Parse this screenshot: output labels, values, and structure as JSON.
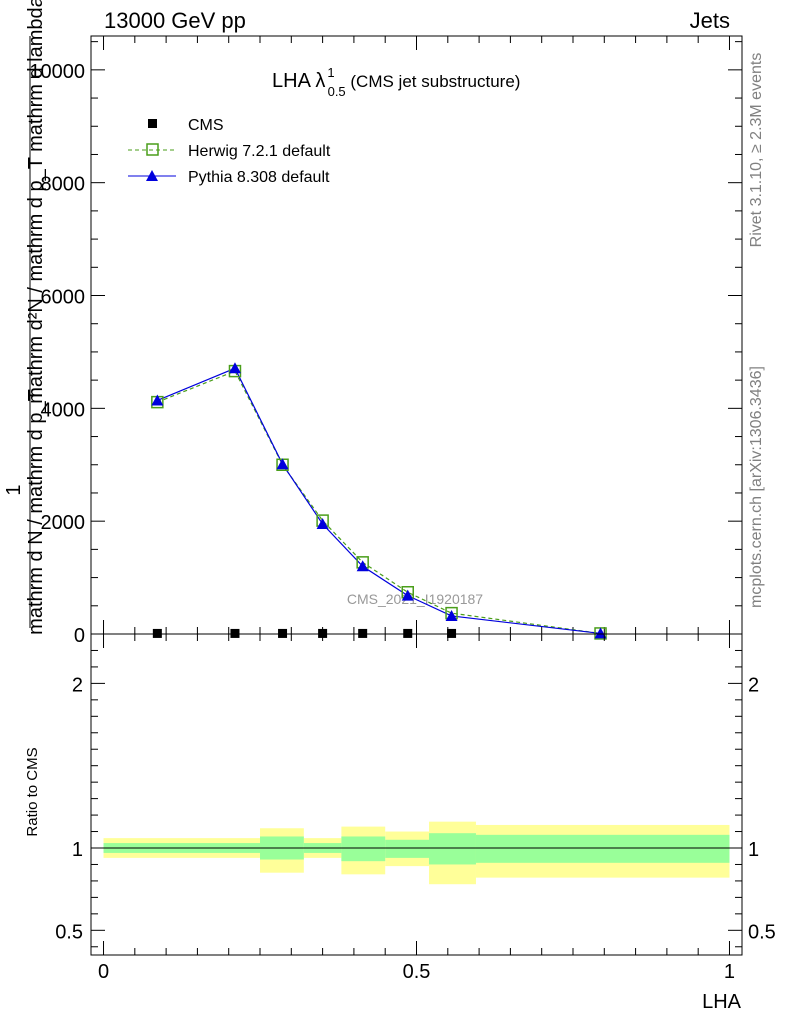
{
  "header": {
    "left": "13000 GeV pp",
    "right": "Jets"
  },
  "side_labels": {
    "rivet": "Rivet 3.1.10, ≥ 2.3M events",
    "mcplots": "mcplots.cern.ch [arXiv:1306.3436]"
  },
  "watermark": "CMS_2021_I1920187",
  "chart_data": [
    {
      "type": "line",
      "title": {
        "main": "LHA λ",
        "superscript": "1",
        "subscript": "0.5",
        "suffix": " (CMS jet substructure)"
      },
      "ylabel": {
        "numerator": "1",
        "denominator": "mathrm d N / mathrm d p_T",
        "expression": "mathrm d²N / mathrm d p_T mathrm d lambda"
      },
      "ylim": [
        0,
        10600
      ],
      "yticks": [
        {
          "value": 0,
          "label": "0"
        },
        {
          "value": 2000,
          "label": "2000"
        },
        {
          "value": 4000,
          "label": "4000"
        },
        {
          "value": 6000,
          "label": "6000"
        },
        {
          "value": 8000,
          "label": "8000"
        },
        {
          "value": 10000,
          "label": "10000"
        }
      ],
      "xlim": [
        -0.02,
        1.02
      ],
      "legend": {
        "placement": "top-left"
      },
      "series": [
        {
          "name": "CMS",
          "style": "filled-square",
          "color": "#000000",
          "x": [
            0.086,
            0.21,
            0.286,
            0.35,
            0.414,
            0.486,
            0.556
          ],
          "y": [
            10,
            10,
            10,
            10,
            10,
            10,
            10
          ]
        },
        {
          "name": "Herwig 7.2.1 default",
          "style": "dashed-open-square",
          "color": "#4a9e1a",
          "x": [
            0.086,
            0.21,
            0.286,
            0.35,
            0.414,
            0.486,
            0.556,
            0.794
          ],
          "y": [
            4110,
            4660,
            3000,
            2010,
            1270,
            740,
            370,
            10
          ]
        },
        {
          "name": "Pythia 8.308 default",
          "style": "solid-filled-triangle",
          "color": "#0000dd",
          "x": [
            0.086,
            0.21,
            0.286,
            0.35,
            0.414,
            0.486,
            0.556,
            0.794
          ],
          "y": [
            4140,
            4710,
            3010,
            1950,
            1200,
            680,
            320,
            10
          ]
        }
      ]
    },
    {
      "type": "area",
      "ylabel": "Ratio to CMS",
      "xlabel": "LHA",
      "ylim": [
        0.35,
        2.3
      ],
      "yticks": [
        {
          "value": 0.5,
          "label": "0.5"
        },
        {
          "value": 1,
          "label": "1"
        },
        {
          "value": 2,
          "label": "2"
        }
      ],
      "xticks": [
        {
          "value": 0,
          "label": "0"
        },
        {
          "value": 0.5,
          "label": "0.5"
        },
        {
          "value": 1,
          "label": "1"
        }
      ],
      "xlim": [
        -0.02,
        1.02
      ],
      "colors": {
        "stat_band": "#99ff99",
        "total_band": "#ffff99"
      },
      "bands": [
        {
          "x0": 0.0,
          "x1": 0.25,
          "inner": [
            0.97,
            1.03
          ],
          "outer": [
            0.94,
            1.06
          ]
        },
        {
          "x0": 0.25,
          "x1": 0.32,
          "inner": [
            0.93,
            1.07
          ],
          "outer": [
            0.85,
            1.12
          ]
        },
        {
          "x0": 0.32,
          "x1": 0.38,
          "inner": [
            0.97,
            1.03
          ],
          "outer": [
            0.94,
            1.06
          ]
        },
        {
          "x0": 0.38,
          "x1": 0.45,
          "inner": [
            0.92,
            1.07
          ],
          "outer": [
            0.84,
            1.13
          ]
        },
        {
          "x0": 0.45,
          "x1": 0.52,
          "inner": [
            0.94,
            1.05
          ],
          "outer": [
            0.89,
            1.1
          ]
        },
        {
          "x0": 0.52,
          "x1": 0.595,
          "inner": [
            0.9,
            1.09
          ],
          "outer": [
            0.78,
            1.16
          ]
        },
        {
          "x0": 0.595,
          "x1": 1.0,
          "inner": [
            0.91,
            1.08
          ],
          "outer": [
            0.82,
            1.14
          ]
        }
      ],
      "reference": 1
    }
  ]
}
